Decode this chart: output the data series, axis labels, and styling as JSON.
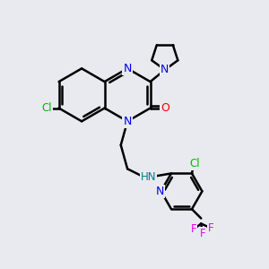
{
  "bg_color": "#e8eaf0",
  "bond_color": "#000000",
  "bond_width": 1.8,
  "atom_colors": {
    "N": "#0000ee",
    "O": "#ee0000",
    "Cl": "#00bb00",
    "F": "#ee00ee",
    "C": "#000000",
    "H": "#008080"
  },
  "font_size": 8.5,
  "fig_size": [
    3.0,
    3.0
  ],
  "dpi": 100
}
